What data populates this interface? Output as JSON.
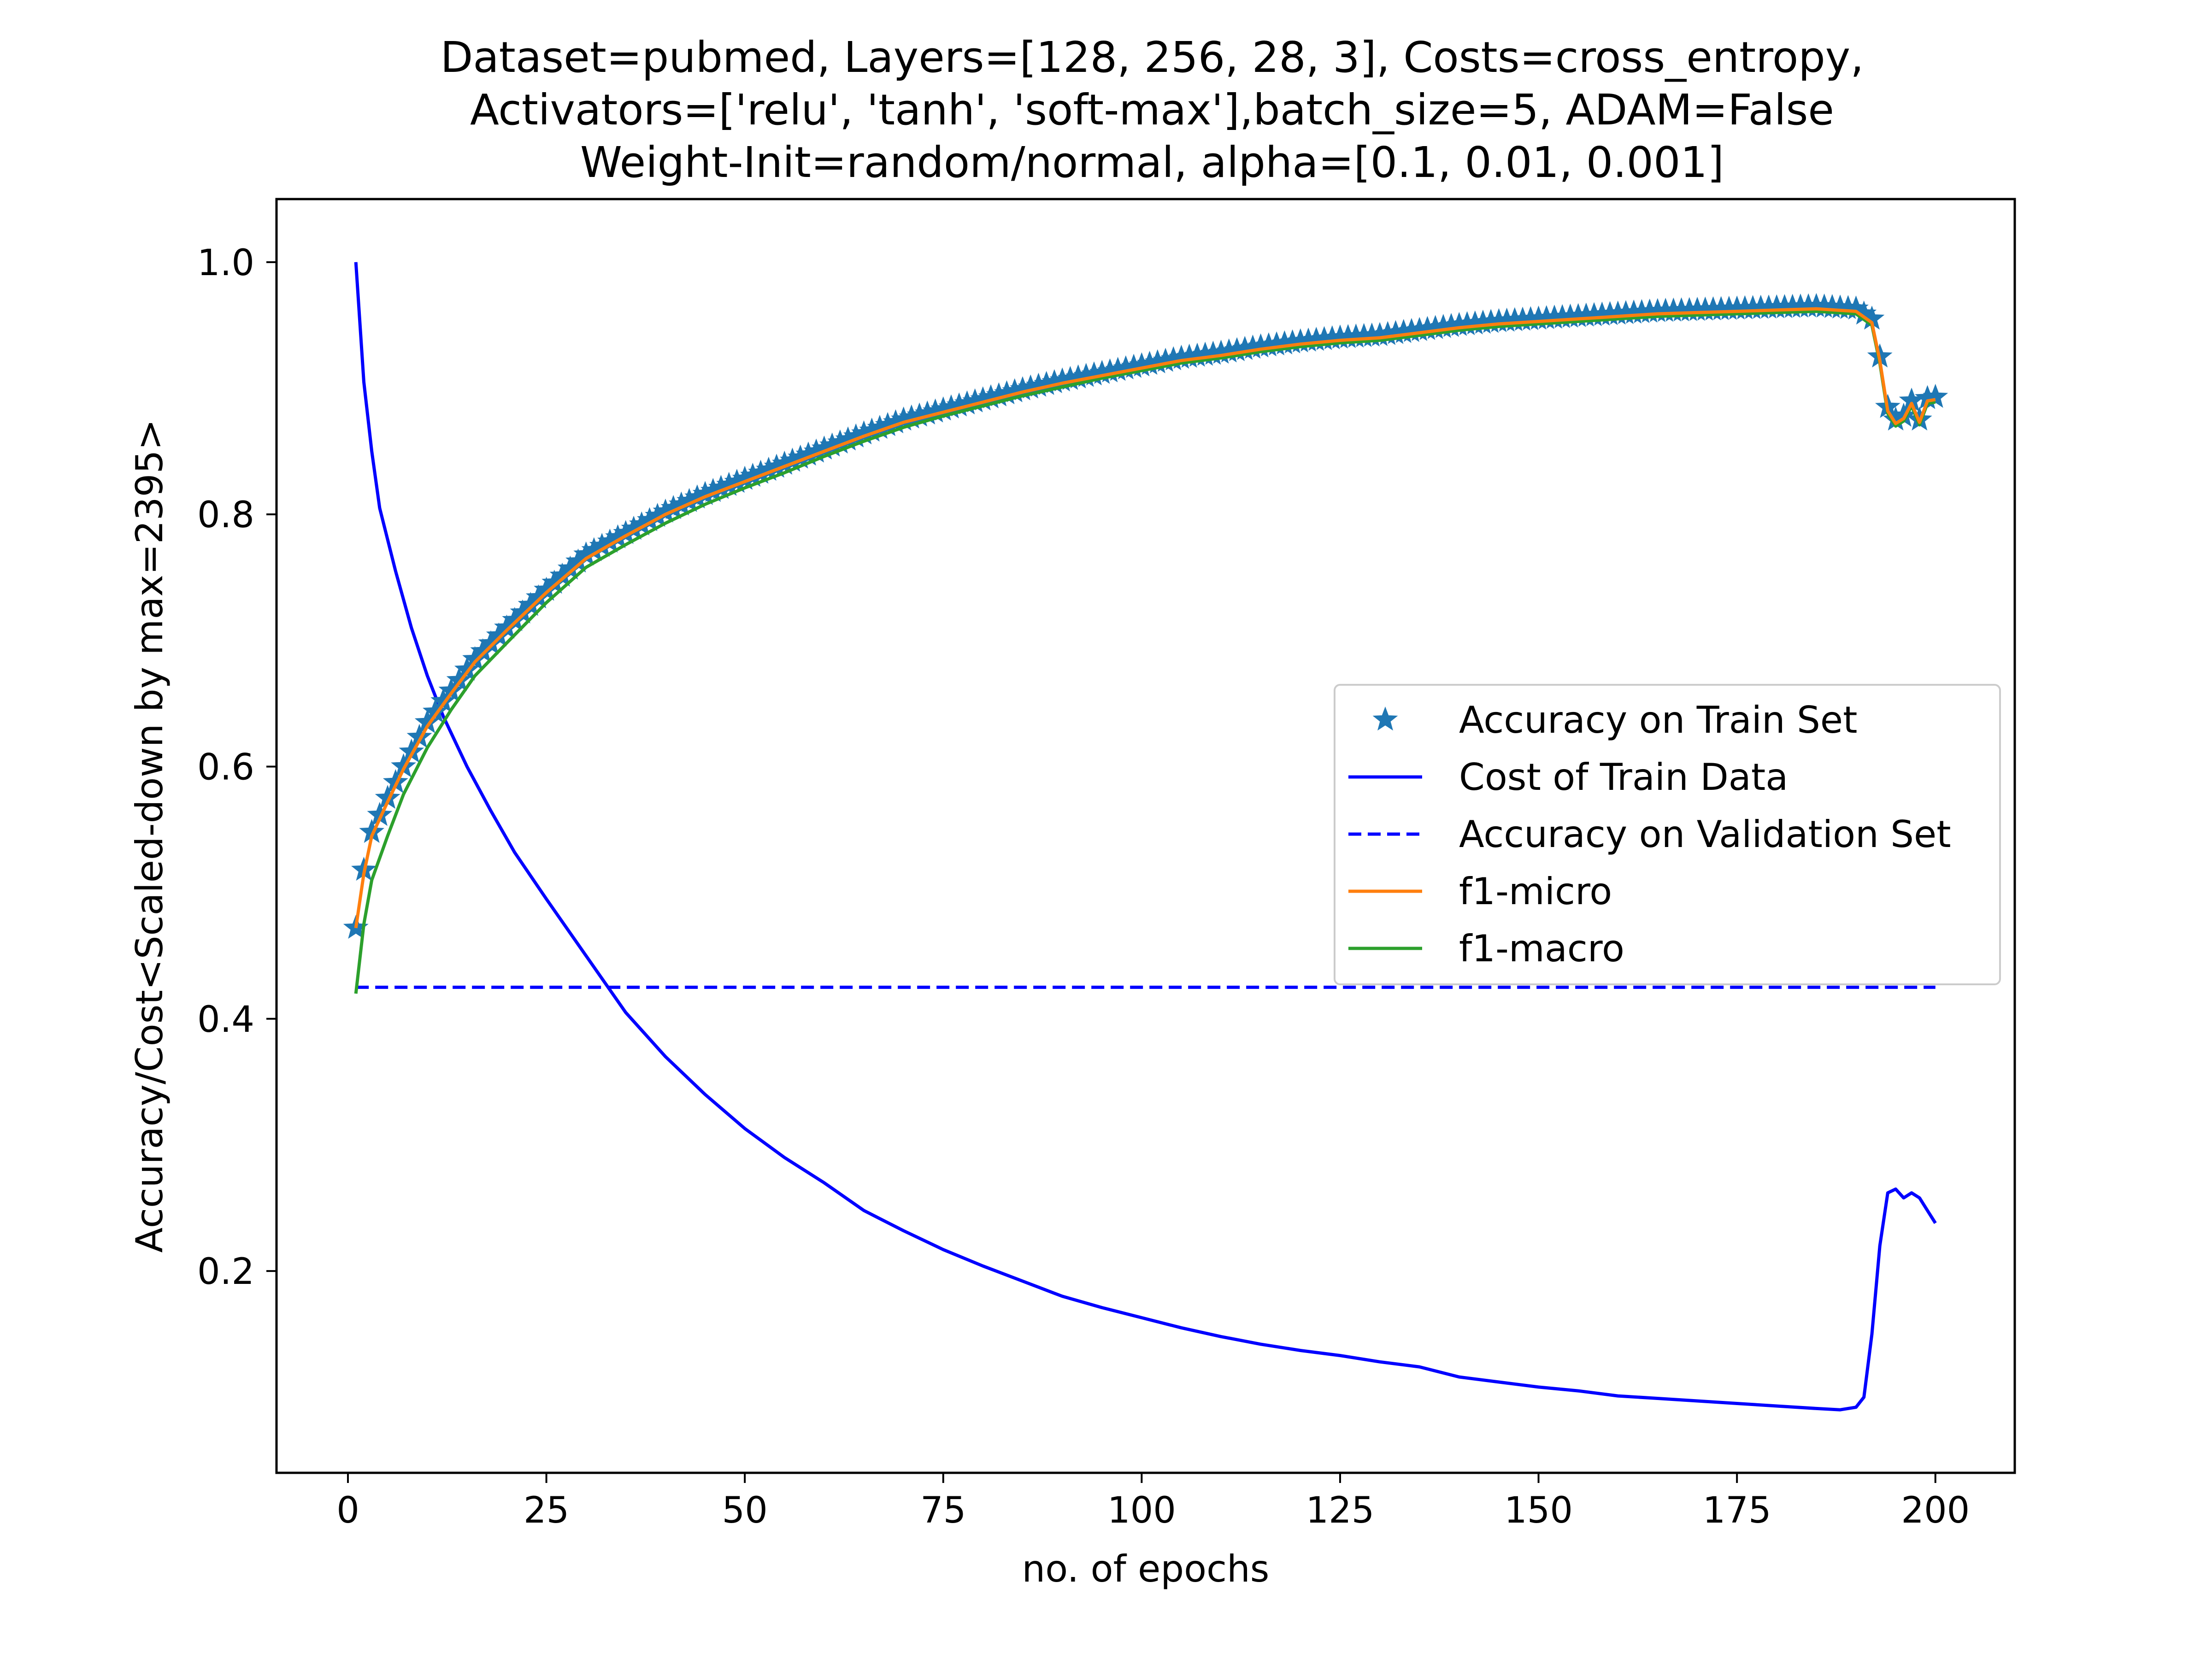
{
  "chart_data": {
    "type": "line",
    "title_lines": [
      "Dataset=pubmed, Layers=[128, 256, 28, 3], Costs=cross_entropy,",
      "Activators=['relu', 'tanh', 'soft-max'],batch_size=5, ADAM=False",
      "Weight-Init=random/normal, alpha=[0.1, 0.01, 0.001]"
    ],
    "xlabel": "no. of epochs",
    "ylabel": "Accuracy/Cost<Scaled-down by max=2395>",
    "xlim": [
      -9,
      210
    ],
    "ylim": [
      0.04,
      1.05
    ],
    "x_ticks": [
      0,
      25,
      50,
      75,
      100,
      125,
      150,
      175,
      200
    ],
    "x_tick_labels": [
      "0",
      "25",
      "50",
      "75",
      "100",
      "125",
      "150",
      "175",
      "200"
    ],
    "y_ticks": [
      0.2,
      0.4,
      0.6,
      0.8,
      1.0
    ],
    "y_tick_labels": [
      "0.2",
      "0.4",
      "0.6",
      "0.8",
      "1.0"
    ],
    "grid": false,
    "legend_position": "center-right",
    "series": [
      {
        "name": "Accuracy on Train Set",
        "style": "star-markers",
        "color": "#1f77b4",
        "points": [
          [
            1,
            0.472
          ],
          [
            2,
            0.518
          ],
          [
            3,
            0.548
          ],
          [
            5,
            0.575
          ],
          [
            7,
            0.6
          ],
          [
            10,
            0.635
          ],
          [
            13,
            0.66
          ],
          [
            16,
            0.685
          ],
          [
            20,
            0.71
          ],
          [
            25,
            0.74
          ],
          [
            30,
            0.768
          ],
          [
            35,
            0.785
          ],
          [
            40,
            0.802
          ],
          [
            45,
            0.816
          ],
          [
            50,
            0.828
          ],
          [
            55,
            0.84
          ],
          [
            60,
            0.852
          ],
          [
            65,
            0.864
          ],
          [
            70,
            0.875
          ],
          [
            75,
            0.883
          ],
          [
            80,
            0.891
          ],
          [
            85,
            0.899
          ],
          [
            90,
            0.906
          ],
          [
            95,
            0.912
          ],
          [
            100,
            0.918
          ],
          [
            105,
            0.924
          ],
          [
            110,
            0.928
          ],
          [
            115,
            0.933
          ],
          [
            120,
            0.937
          ],
          [
            125,
            0.94
          ],
          [
            130,
            0.942
          ],
          [
            135,
            0.946
          ],
          [
            140,
            0.95
          ],
          [
            145,
            0.953
          ],
          [
            150,
            0.955
          ],
          [
            155,
            0.957
          ],
          [
            160,
            0.959
          ],
          [
            165,
            0.961
          ],
          [
            170,
            0.962
          ],
          [
            175,
            0.963
          ],
          [
            180,
            0.964
          ],
          [
            185,
            0.965
          ],
          [
            190,
            0.963
          ],
          [
            192,
            0.955
          ],
          [
            193,
            0.925
          ],
          [
            194,
            0.885
          ],
          [
            195,
            0.875
          ],
          [
            196,
            0.878
          ],
          [
            197,
            0.89
          ],
          [
            198,
            0.875
          ],
          [
            199,
            0.892
          ],
          [
            200,
            0.893
          ]
        ]
      },
      {
        "name": "Cost of Train Data",
        "style": "solid",
        "color": "#0000ff",
        "points": [
          [
            1,
            1.0
          ],
          [
            2,
            0.905
          ],
          [
            3,
            0.85
          ],
          [
            4,
            0.805
          ],
          [
            6,
            0.755
          ],
          [
            8,
            0.71
          ],
          [
            10,
            0.672
          ],
          [
            12,
            0.64
          ],
          [
            15,
            0.6
          ],
          [
            18,
            0.565
          ],
          [
            21,
            0.532
          ],
          [
            25,
            0.495
          ],
          [
            30,
            0.45
          ],
          [
            35,
            0.405
          ],
          [
            40,
            0.37
          ],
          [
            45,
            0.34
          ],
          [
            50,
            0.313
          ],
          [
            55,
            0.29
          ],
          [
            60,
            0.27
          ],
          [
            65,
            0.248
          ],
          [
            70,
            0.232
          ],
          [
            75,
            0.217
          ],
          [
            80,
            0.204
          ],
          [
            85,
            0.192
          ],
          [
            90,
            0.18
          ],
          [
            95,
            0.171
          ],
          [
            100,
            0.163
          ],
          [
            105,
            0.155
          ],
          [
            110,
            0.148
          ],
          [
            115,
            0.142
          ],
          [
            120,
            0.137
          ],
          [
            125,
            0.133
          ],
          [
            130,
            0.128
          ],
          [
            135,
            0.124
          ],
          [
            140,
            0.116
          ],
          [
            145,
            0.112
          ],
          [
            150,
            0.108
          ],
          [
            155,
            0.105
          ],
          [
            160,
            0.101
          ],
          [
            165,
            0.099
          ],
          [
            170,
            0.097
          ],
          [
            175,
            0.095
          ],
          [
            180,
            0.093
          ],
          [
            185,
            0.091
          ],
          [
            188,
            0.09
          ],
          [
            190,
            0.092
          ],
          [
            191,
            0.1
          ],
          [
            192,
            0.15
          ],
          [
            193,
            0.22
          ],
          [
            194,
            0.262
          ],
          [
            195,
            0.265
          ],
          [
            196,
            0.258
          ],
          [
            197,
            0.262
          ],
          [
            198,
            0.258
          ],
          [
            199,
            0.248
          ],
          [
            200,
            0.238
          ]
        ]
      },
      {
        "name": "Accuracy on Validation Set",
        "style": "dashed",
        "color": "#0000ff",
        "points": [
          [
            1,
            0.425
          ],
          [
            200,
            0.425
          ]
        ]
      },
      {
        "name": "f1-micro",
        "style": "solid",
        "color": "#ff7f0e",
        "points": [
          [
            1,
            0.472
          ],
          [
            2,
            0.515
          ],
          [
            3,
            0.545
          ],
          [
            5,
            0.572
          ],
          [
            7,
            0.598
          ],
          [
            10,
            0.632
          ],
          [
            13,
            0.658
          ],
          [
            16,
            0.683
          ],
          [
            20,
            0.708
          ],
          [
            25,
            0.738
          ],
          [
            30,
            0.765
          ],
          [
            35,
            0.783
          ],
          [
            40,
            0.8
          ],
          [
            45,
            0.814
          ],
          [
            50,
            0.826
          ],
          [
            55,
            0.838
          ],
          [
            60,
            0.85
          ],
          [
            65,
            0.862
          ],
          [
            70,
            0.873
          ],
          [
            75,
            0.881
          ],
          [
            80,
            0.889
          ],
          [
            85,
            0.897
          ],
          [
            90,
            0.904
          ],
          [
            95,
            0.91
          ],
          [
            100,
            0.916
          ],
          [
            105,
            0.922
          ],
          [
            110,
            0.926
          ],
          [
            115,
            0.931
          ],
          [
            120,
            0.935
          ],
          [
            125,
            0.938
          ],
          [
            130,
            0.94
          ],
          [
            135,
            0.944
          ],
          [
            140,
            0.948
          ],
          [
            145,
            0.951
          ],
          [
            150,
            0.953
          ],
          [
            155,
            0.955
          ],
          [
            160,
            0.957
          ],
          [
            165,
            0.959
          ],
          [
            170,
            0.96
          ],
          [
            175,
            0.961
          ],
          [
            180,
            0.962
          ],
          [
            185,
            0.963
          ],
          [
            190,
            0.961
          ],
          [
            192,
            0.952
          ],
          [
            193,
            0.922
          ],
          [
            194,
            0.882
          ],
          [
            195,
            0.872
          ],
          [
            196,
            0.876
          ],
          [
            197,
            0.888
          ],
          [
            198,
            0.873
          ],
          [
            199,
            0.89
          ],
          [
            200,
            0.891
          ]
        ]
      },
      {
        "name": "f1-macro",
        "style": "solid",
        "color": "#2ca02c",
        "points": [
          [
            1,
            0.42
          ],
          [
            2,
            0.475
          ],
          [
            3,
            0.51
          ],
          [
            5,
            0.545
          ],
          [
            7,
            0.578
          ],
          [
            10,
            0.615
          ],
          [
            13,
            0.645
          ],
          [
            16,
            0.672
          ],
          [
            20,
            0.698
          ],
          [
            25,
            0.73
          ],
          [
            30,
            0.758
          ],
          [
            35,
            0.776
          ],
          [
            40,
            0.793
          ],
          [
            45,
            0.808
          ],
          [
            50,
            0.821
          ],
          [
            55,
            0.833
          ],
          [
            60,
            0.846
          ],
          [
            65,
            0.858
          ],
          [
            70,
            0.869
          ],
          [
            75,
            0.878
          ],
          [
            80,
            0.886
          ],
          [
            85,
            0.894
          ],
          [
            90,
            0.901
          ],
          [
            95,
            0.908
          ],
          [
            100,
            0.914
          ],
          [
            105,
            0.92
          ],
          [
            110,
            0.924
          ],
          [
            115,
            0.929
          ],
          [
            120,
            0.933
          ],
          [
            125,
            0.936
          ],
          [
            130,
            0.938
          ],
          [
            135,
            0.942
          ],
          [
            140,
            0.946
          ],
          [
            145,
            0.949
          ],
          [
            150,
            0.951
          ],
          [
            155,
            0.953
          ],
          [
            160,
            0.955
          ],
          [
            165,
            0.957
          ],
          [
            170,
            0.958
          ],
          [
            175,
            0.959
          ],
          [
            180,
            0.96
          ],
          [
            185,
            0.961
          ],
          [
            190,
            0.959
          ],
          [
            192,
            0.95
          ],
          [
            193,
            0.92
          ],
          [
            194,
            0.88
          ],
          [
            195,
            0.87
          ],
          [
            196,
            0.874
          ],
          [
            197,
            0.886
          ],
          [
            198,
            0.871
          ],
          [
            199,
            0.888
          ],
          [
            200,
            0.889
          ]
        ]
      }
    ]
  }
}
